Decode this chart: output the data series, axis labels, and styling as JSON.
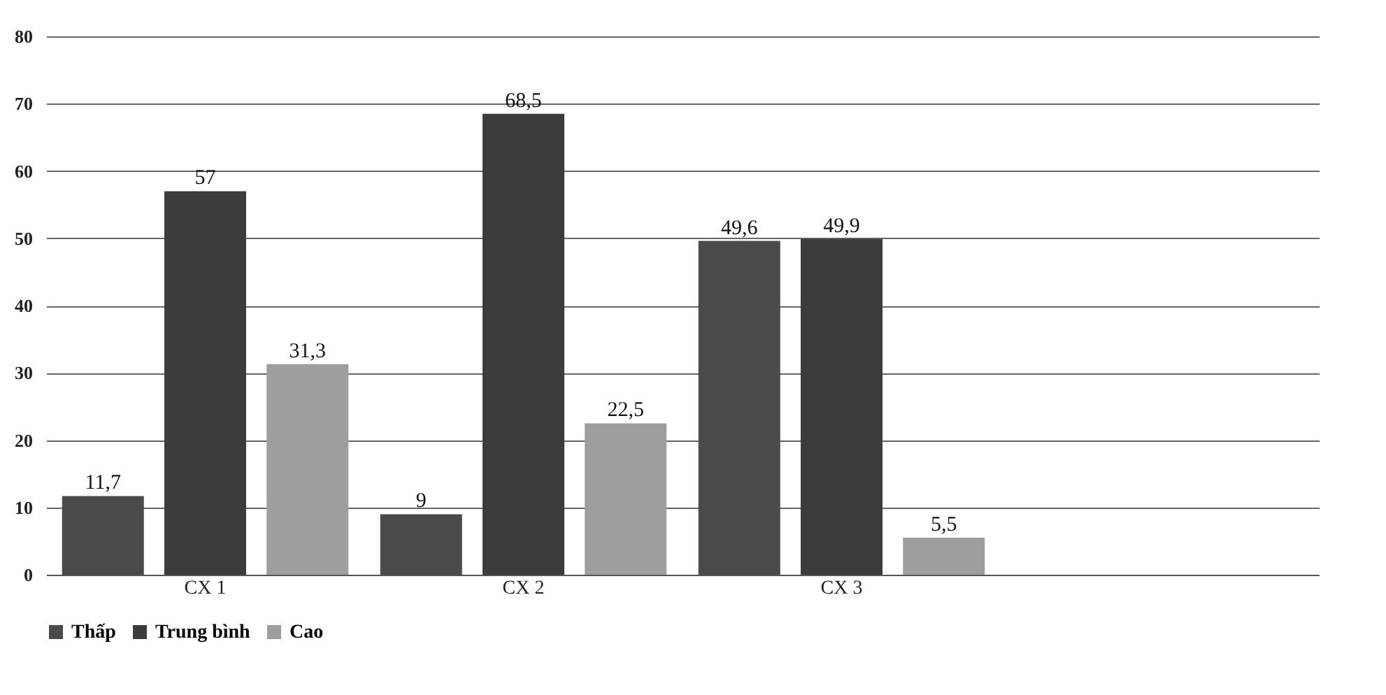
{
  "chart_data": {
    "type": "bar",
    "categories": [
      "CX 1",
      "CX 2",
      "CX 3",
      null
    ],
    "series": [
      {
        "name": "Thấp",
        "color": "#4a4a4a",
        "values": [
          11.7,
          9,
          49.6,
          null
        ],
        "value_labels": [
          "11,7",
          "9",
          "49,6",
          null
        ]
      },
      {
        "name": "Trung bình",
        "color": "#3c3c3c",
        "values": [
          57,
          68.5,
          49.9,
          null
        ],
        "value_labels": [
          "57",
          "68,5",
          "49,9",
          null
        ]
      },
      {
        "name": "Cao",
        "color": "#9e9e9e",
        "values": [
          31.3,
          22.5,
          5.5,
          null
        ],
        "value_labels": [
          "31,3",
          "22,5",
          "5,5",
          null
        ]
      }
    ],
    "ylim": [
      0,
      80
    ],
    "yticks": [
      0,
      10,
      20,
      30,
      40,
      50,
      60,
      70,
      80
    ],
    "grid": "y",
    "legend": "bottom"
  }
}
